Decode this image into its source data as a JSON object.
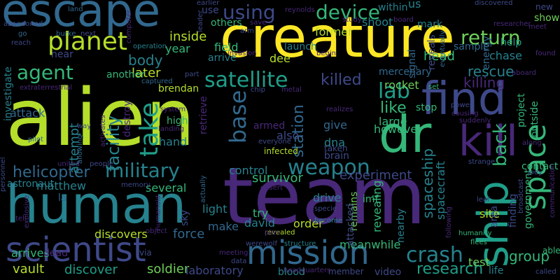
{
  "background": "#000000",
  "palette": [
    "#440154",
    "#482878",
    "#3e4989",
    "#31688e",
    "#26828e",
    "#1f9e89",
    "#35b779",
    "#6ece58",
    "#b5de2b",
    "#fde725"
  ],
  "words": [
    {
      "text": "alien",
      "color": "#b5de2b",
      "orientation": "horizontal"
    },
    {
      "text": "team",
      "color": "#482878",
      "orientation": "horizontal"
    },
    {
      "text": "creature",
      "color": "#fde725",
      "orientation": "horizontal"
    },
    {
      "text": "human",
      "color": "#26828e",
      "orientation": "horizontal"
    },
    {
      "text": "escape",
      "color": "#31688e",
      "orientation": "horizontal"
    },
    {
      "text": "dr",
      "color": "#35b779",
      "orientation": "horizontal"
    },
    {
      "text": "find",
      "color": "#3e4989",
      "orientation": "horizontal"
    },
    {
      "text": "ship",
      "color": "#1f9e89",
      "orientation": "vertical"
    },
    {
      "text": "scientist",
      "color": "#3e4989",
      "orientation": "horizontal"
    },
    {
      "text": "mission",
      "color": "#31688e",
      "orientation": "horizontal"
    },
    {
      "text": "kill",
      "color": "#482878",
      "orientation": "horizontal"
    },
    {
      "text": "planet",
      "color": "#b5de2b",
      "orientation": "horizontal"
    },
    {
      "text": "take",
      "color": "#1f9e89",
      "orientation": "vertical"
    },
    {
      "text": "space",
      "color": "#35b779",
      "orientation": "vertical"
    },
    {
      "text": "agent",
      "color": "#35b779",
      "orientation": "horizontal"
    },
    {
      "text": "satellite",
      "color": "#1f9e89",
      "orientation": "horizontal"
    },
    {
      "text": "military",
      "color": "#26828e",
      "orientation": "horizontal"
    },
    {
      "text": "return",
      "color": "#6ece58",
      "orientation": "horizontal"
    },
    {
      "text": "using",
      "color": "#3e4989",
      "orientation": "horizontal"
    },
    {
      "text": "device",
      "color": "#35b779",
      "orientation": "horizontal"
    },
    {
      "text": "base",
      "color": "#31688e",
      "orientation": "vertical"
    },
    {
      "text": "weapon",
      "color": "#26828e",
      "orientation": "horizontal"
    },
    {
      "text": "lab",
      "color": "#1f9e89",
      "orientation": "horizontal"
    },
    {
      "text": "crash",
      "color": "#26828e",
      "orientation": "horizontal"
    },
    {
      "text": "killed",
      "color": "#3e4989",
      "orientation": "horizontal"
    },
    {
      "text": "back",
      "color": "#35b779",
      "orientation": "vertical"
    },
    {
      "text": "helicopter",
      "color": "#31688e",
      "orientation": "horizontal"
    },
    {
      "text": "facility",
      "color": "#26828e",
      "orientation": "vertical"
    },
    {
      "text": "research",
      "color": "#1f9e89",
      "orientation": "horizontal"
    },
    {
      "text": "station",
      "color": "#31688e",
      "orientation": "vertical"
    },
    {
      "text": "spaceship",
      "color": "#26828e",
      "orientation": "vertical"
    },
    {
      "text": "survivor",
      "color": "#35b779",
      "orientation": "horizontal"
    },
    {
      "text": "experiment",
      "color": "#3e4989",
      "orientation": "horizontal"
    },
    {
      "text": "killing",
      "color": "#482878",
      "orientation": "horizontal"
    },
    {
      "text": "rescue",
      "color": "#26828e",
      "orientation": "horizontal"
    },
    {
      "text": "like",
      "color": "#35b779",
      "orientation": "horizontal"
    },
    {
      "text": "group",
      "color": "#35b779",
      "orientation": "horizontal"
    },
    {
      "text": "body",
      "color": "#26828e",
      "orientation": "horizontal"
    },
    {
      "text": "inside",
      "color": "#b5de2b",
      "orientation": "horizontal"
    },
    {
      "text": "attempt",
      "color": "#26828e",
      "orientation": "vertical"
    },
    {
      "text": "head",
      "color": "#35b779",
      "orientation": "horizontal"
    },
    {
      "text": "soldier",
      "color": "#6ece58",
      "orientation": "horizontal"
    },
    {
      "text": "discover",
      "color": "#1f9e89",
      "orientation": "horizontal"
    },
    {
      "text": "discovers",
      "color": "#b5de2b",
      "orientation": "horizontal"
    },
    {
      "text": "vault",
      "color": "#b5de2b",
      "orientation": "horizontal"
    },
    {
      "text": "attack",
      "color": "#31688e",
      "orientation": "horizontal"
    },
    {
      "text": "laboratory",
      "color": "#3e4989",
      "orientation": "horizontal"
    },
    {
      "text": "matthew",
      "color": "#26828e",
      "orientation": "horizontal"
    },
    {
      "text": "astronaut",
      "color": "#26828e",
      "orientation": "horizontal"
    },
    {
      "text": "force",
      "color": "#31688e",
      "orientation": "horizontal"
    },
    {
      "text": "several",
      "color": "#35b779",
      "orientation": "horizontal"
    },
    {
      "text": "arrives",
      "color": "#35b779",
      "orientation": "horizontal"
    },
    {
      "text": "make",
      "color": "#31688e",
      "orientation": "horizontal"
    },
    {
      "text": "light",
      "color": "#26828e",
      "orientation": "horizontal"
    },
    {
      "text": "control",
      "color": "#26828e",
      "orientation": "horizontal"
    },
    {
      "text": "david",
      "color": "#26828e",
      "orientation": "horizontal"
    },
    {
      "text": "try",
      "color": "#35b779",
      "orientation": "horizontal"
    },
    {
      "text": "drive",
      "color": "#26828e",
      "orientation": "horizontal"
    },
    {
      "text": "order",
      "color": "#b5de2b",
      "orientation": "horizontal"
    },
    {
      "text": "meanwhile",
      "color": "#35b779",
      "orientation": "horizontal"
    },
    {
      "text": "revealing",
      "color": "#35b779",
      "orientation": "vertical"
    },
    {
      "text": "spacecraft",
      "color": "#26828e",
      "orientation": "vertical"
    },
    {
      "text": "however",
      "color": "#35b779",
      "orientation": "horizontal"
    },
    {
      "text": "large",
      "color": "#35b779",
      "orientation": "horizontal"
    },
    {
      "text": "give",
      "color": "#31688e",
      "orientation": "horizontal"
    },
    {
      "text": "also",
      "color": "#3e4989",
      "orientation": "horizontal"
    },
    {
      "text": "stop",
      "color": "#35b779",
      "orientation": "horizontal"
    },
    {
      "text": "dna",
      "color": "#26828e",
      "orientation": "horizontal"
    },
    {
      "text": "brain",
      "color": "#3e4989",
      "orientation": "horizontal"
    },
    {
      "text": "brendan",
      "color": "#b5de2b",
      "orientation": "horizontal"
    },
    {
      "text": "later",
      "color": "#b5de2b",
      "orientation": "horizontal"
    },
    {
      "text": "year",
      "color": "#35b779",
      "orientation": "horizontal"
    },
    {
      "text": "high",
      "color": "#35b779",
      "orientation": "horizontal"
    },
    {
      "text": "hand",
      "color": "#26828e",
      "orientation": "horizontal"
    },
    {
      "text": "field",
      "color": "#35b779",
      "orientation": "horizontal"
    },
    {
      "text": "arrive",
      "color": "#26828e",
      "orientation": "horizontal"
    },
    {
      "text": "another",
      "color": "#35b779",
      "orientation": "horizontal"
    },
    {
      "text": "near",
      "color": "#3e4989",
      "orientation": "horizontal"
    },
    {
      "text": "investigate",
      "color": "#26828e",
      "orientation": "vertical"
    },
    {
      "text": "mercenary",
      "color": "#31688e",
      "orientation": "horizontal"
    },
    {
      "text": "rocket",
      "color": "#6ece58",
      "orientation": "horizontal"
    },
    {
      "text": "former",
      "color": "#b5de2b",
      "orientation": "horizontal"
    },
    {
      "text": "shoot",
      "color": "#26828e",
      "orientation": "horizontal"
    },
    {
      "text": "launch",
      "color": "#26828e",
      "orientation": "horizontal"
    },
    {
      "text": "others",
      "color": "#35b779",
      "orientation": "horizontal"
    },
    {
      "text": "chase",
      "color": "#26828e",
      "orientation": "horizontal"
    },
    {
      "text": "help",
      "color": "#1f9e89",
      "orientation": "horizontal"
    },
    {
      "text": "show",
      "color": "#6ece58",
      "orientation": "horizontal"
    },
    {
      "text": "sample",
      "color": "#31688e",
      "orientation": "horizontal"
    },
    {
      "text": "within",
      "color": "#26828e",
      "orientation": "horizontal"
    },
    {
      "text": "contact",
      "color": "#35b779",
      "orientation": "horizontal"
    },
    {
      "text": "site",
      "color": "#b5de2b",
      "orientation": "horizontal"
    },
    {
      "text": "test",
      "color": "#6ece58",
      "orientation": "horizontal"
    },
    {
      "text": "life",
      "color": "#26828e",
      "orientation": "horizontal"
    },
    {
      "text": "video",
      "color": "#3e4989",
      "orientation": "horizontal"
    },
    {
      "text": "blood",
      "color": "#26828e",
      "orientation": "horizontal"
    },
    {
      "text": "member",
      "color": "#3e4989",
      "orientation": "horizontal"
    },
    {
      "text": "project",
      "color": "#35b779",
      "orientation": "vertical"
    },
    {
      "text": "government",
      "color": "#35b779",
      "orientation": "vertical"
    },
    {
      "text": "outside",
      "color": "#35b779",
      "orientation": "vertical"
    },
    {
      "text": "finding",
      "color": "#3e4989",
      "orientation": "vertical"
    },
    {
      "text": "area",
      "color": "#3e4989",
      "orientation": "vertical"
    },
    {
      "text": "remains",
      "color": "#6ece58",
      "orientation": "vertical"
    },
    {
      "text": "armed",
      "color": "#482878",
      "orientation": "horizontal"
    },
    {
      "text": "infected",
      "color": "#b5de2b",
      "orientation": "horizontal"
    },
    {
      "text": "taken",
      "color": "#3e4989",
      "orientation": "horizontal"
    },
    {
      "text": "imf",
      "color": "#35b779",
      "orientation": "horizontal"
    },
    {
      "text": "attacked",
      "color": "#3e4989",
      "orientation": "vertical"
    },
    {
      "text": "nearby",
      "color": "#26828e",
      "orientation": "vertical"
    },
    {
      "text": "reveals",
      "color": "#3e4989",
      "orientation": "vertical"
    },
    {
      "text": "energy",
      "color": "#31688e",
      "orientation": "vertical"
    },
    {
      "text": "signal",
      "color": "#31688e",
      "orientation": "vertical"
    },
    {
      "text": "mark",
      "color": "#26828e",
      "orientation": "horizontal"
    },
    {
      "text": "us",
      "color": "#26828e",
      "orientation": "horizontal"
    },
    {
      "text": "dee",
      "color": "#b5de2b",
      "orientation": "horizontal"
    },
    {
      "text": "use",
      "color": "#3e4989",
      "orientation": "horizontal"
    },
    {
      "text": "la",
      "color": "#31688e",
      "orientation": "horizontal"
    },
    {
      "text": "sky",
      "color": "#3e4989",
      "orientation": "vertical"
    },
    {
      "text": "retrieve",
      "color": "#482878",
      "orientation": "vertical"
    },
    {
      "text": "destroy",
      "color": "#482878",
      "orientation": "vertical"
    },
    {
      "text": "land",
      "color": "#31688e",
      "orientation": "horizontal"
    },
    {
      "text": "next",
      "color": "#3e4989",
      "orientation": "horizontal"
    },
    {
      "text": "burke",
      "color": "#31688e",
      "orientation": "horizontal"
    },
    {
      "text": "reach",
      "color": "#3e4989",
      "orientation": "horizontal"
    },
    {
      "text": "go",
      "color": "#31688e",
      "orientation": "horizontal"
    },
    {
      "text": "abandoned",
      "color": "#3e4989",
      "orientation": "horizontal"
    },
    {
      "text": "operation",
      "color": "#26828e",
      "orientation": "horizontal"
    },
    {
      "text": "extraterrestrial",
      "color": "#482878",
      "orientation": "horizontal"
    },
    {
      "text": "captured",
      "color": "#31688e",
      "orientation": "horizontal"
    },
    {
      "text": "part",
      "color": "#3e4989",
      "orientation": "horizontal"
    },
    {
      "text": "system",
      "color": "#482878",
      "orientation": "horizontal"
    },
    {
      "text": "landing",
      "color": "#482878",
      "orientation": "horizontal"
    },
    {
      "text": "pilot",
      "color": "#31688e",
      "orientation": "horizontal"
    },
    {
      "text": "personnel",
      "color": "#3e4989",
      "orientation": "vertical"
    },
    {
      "text": "united",
      "color": "#482878",
      "orientation": "horizontal"
    },
    {
      "text": "people",
      "color": "#3e4989",
      "orientation": "horizontal"
    },
    {
      "text": "explosive",
      "color": "#482878",
      "orientation": "vertical"
    },
    {
      "text": "allowing",
      "color": "#31688e",
      "orientation": "vertical"
    },
    {
      "text": "memory",
      "color": "#3e4989",
      "orientation": "horizontal"
    },
    {
      "text": "tell",
      "color": "#482878",
      "orientation": "horizontal"
    },
    {
      "text": "dead",
      "color": "#482878",
      "orientation": "horizontal"
    },
    {
      "text": "via",
      "color": "#3e4989",
      "orientation": "horizontal"
    },
    {
      "text": "object",
      "color": "#482878",
      "orientation": "horizontal"
    },
    {
      "text": "humanoid",
      "color": "#482878",
      "orientation": "vertical"
    },
    {
      "text": "actually",
      "color": "#31688e",
      "orientation": "vertical"
    },
    {
      "text": "meeting",
      "color": "#482878",
      "orientation": "horizontal"
    },
    {
      "text": "data",
      "color": "#3e4989",
      "orientation": "horizontal"
    },
    {
      "text": "werewolf",
      "color": "#3e4989",
      "orientation": "horizontal"
    },
    {
      "text": "structure",
      "color": "#26828e",
      "orientation": "horizontal"
    },
    {
      "text": "headquarters",
      "color": "#482878",
      "orientation": "horizontal"
    },
    {
      "text": "revealed",
      "color": "#b5de2b",
      "orientation": "horizontal"
    },
    {
      "text": "become",
      "color": "#26828e",
      "orientation": "horizontal"
    },
    {
      "text": "plan",
      "color": "#482878",
      "orientation": "horizontal"
    },
    {
      "text": "desert",
      "color": "#482878",
      "orientation": "horizontal"
    },
    {
      "text": "specie",
      "color": "#3e4989",
      "orientation": "horizontal"
    },
    {
      "text": "strange",
      "color": "#3e4989",
      "orientation": "horizontal"
    },
    {
      "text": "humanity",
      "color": "#35b779",
      "orientation": "horizontal"
    },
    {
      "text": "flees",
      "color": "#35b779",
      "orientation": "horizontal"
    },
    {
      "text": "following",
      "color": "#482878",
      "orientation": "vertical"
    },
    {
      "text": "leaf",
      "color": "#3e4989",
      "orientation": "horizontal"
    },
    {
      "text": "joey",
      "color": "#3e4989",
      "orientation": "horizontal"
    },
    {
      "text": "able",
      "color": "#35b779",
      "orientation": "horizontal"
    },
    {
      "text": "called",
      "color": "#3e4989",
      "orientation": "horizontal"
    },
    {
      "text": "broadcast",
      "color": "#3e4989",
      "orientation": "vertical"
    },
    {
      "text": "communication",
      "color": "#482878",
      "orientation": "vertical"
    },
    {
      "text": "along",
      "color": "#482878",
      "orientation": "horizontal"
    },
    {
      "text": "everyone",
      "color": "#3e4989",
      "orientation": "horizontal"
    },
    {
      "text": "realizes",
      "color": "#482878",
      "orientation": "horizontal"
    },
    {
      "text": "causing",
      "color": "#482878",
      "orientation": "horizontal"
    },
    {
      "text": "power",
      "color": "#3e4989",
      "orientation": "horizontal"
    },
    {
      "text": "suddenly",
      "color": "#482878",
      "orientation": "horizontal"
    },
    {
      "text": "eventually",
      "color": "#31688e",
      "orientation": "vertical"
    },
    {
      "text": "set",
      "color": "#35b779",
      "orientation": "horizontal"
    },
    {
      "text": "chip",
      "color": "#3e4989",
      "orientation": "horizontal"
    },
    {
      "text": "metal",
      "color": "#482878",
      "orientation": "horizontal"
    },
    {
      "text": "aboard",
      "color": "#482878",
      "orientation": "horizontal"
    },
    {
      "text": "found",
      "color": "#482878",
      "orientation": "horizontal"
    },
    {
      "text": "invasion",
      "color": "#482878",
      "orientation": "horizontal"
    },
    {
      "text": "begin",
      "color": "#482878",
      "orientation": "horizontal"
    },
    {
      "text": "arm",
      "color": "#3e4989",
      "orientation": "horizontal"
    },
    {
      "text": "save",
      "color": "#482878",
      "orientation": "horizontal"
    },
    {
      "text": "study",
      "color": "#482878",
      "orientation": "horizontal"
    },
    {
      "text": "board",
      "color": "#482878",
      "orientation": "horizontal"
    },
    {
      "text": "reynolds",
      "color": "#482878",
      "orientation": "horizontal"
    },
    {
      "text": "earlier",
      "color": "#3e4989",
      "orientation": "horizontal"
    },
    {
      "text": "discovered",
      "color": "#3e4989",
      "orientation": "horizontal"
    },
    {
      "text": "new",
      "color": "#3e4989",
      "orientation": "horizontal"
    },
    {
      "text": "meet",
      "color": "#482878",
      "orientation": "horizontal"
    },
    {
      "text": "researcher",
      "color": "#482878",
      "orientation": "horizontal"
    },
    {
      "text": "computer",
      "color": "#482878",
      "orientation": "vertical"
    },
    {
      "text": "leader",
      "color": "#3e4989",
      "orientation": "vertical"
    },
    {
      "text": "activates",
      "color": "#482878",
      "orientation": "vertical"
    },
    {
      "text": "way",
      "color": "#3e4989",
      "orientation": "horizontal"
    }
  ]
}
